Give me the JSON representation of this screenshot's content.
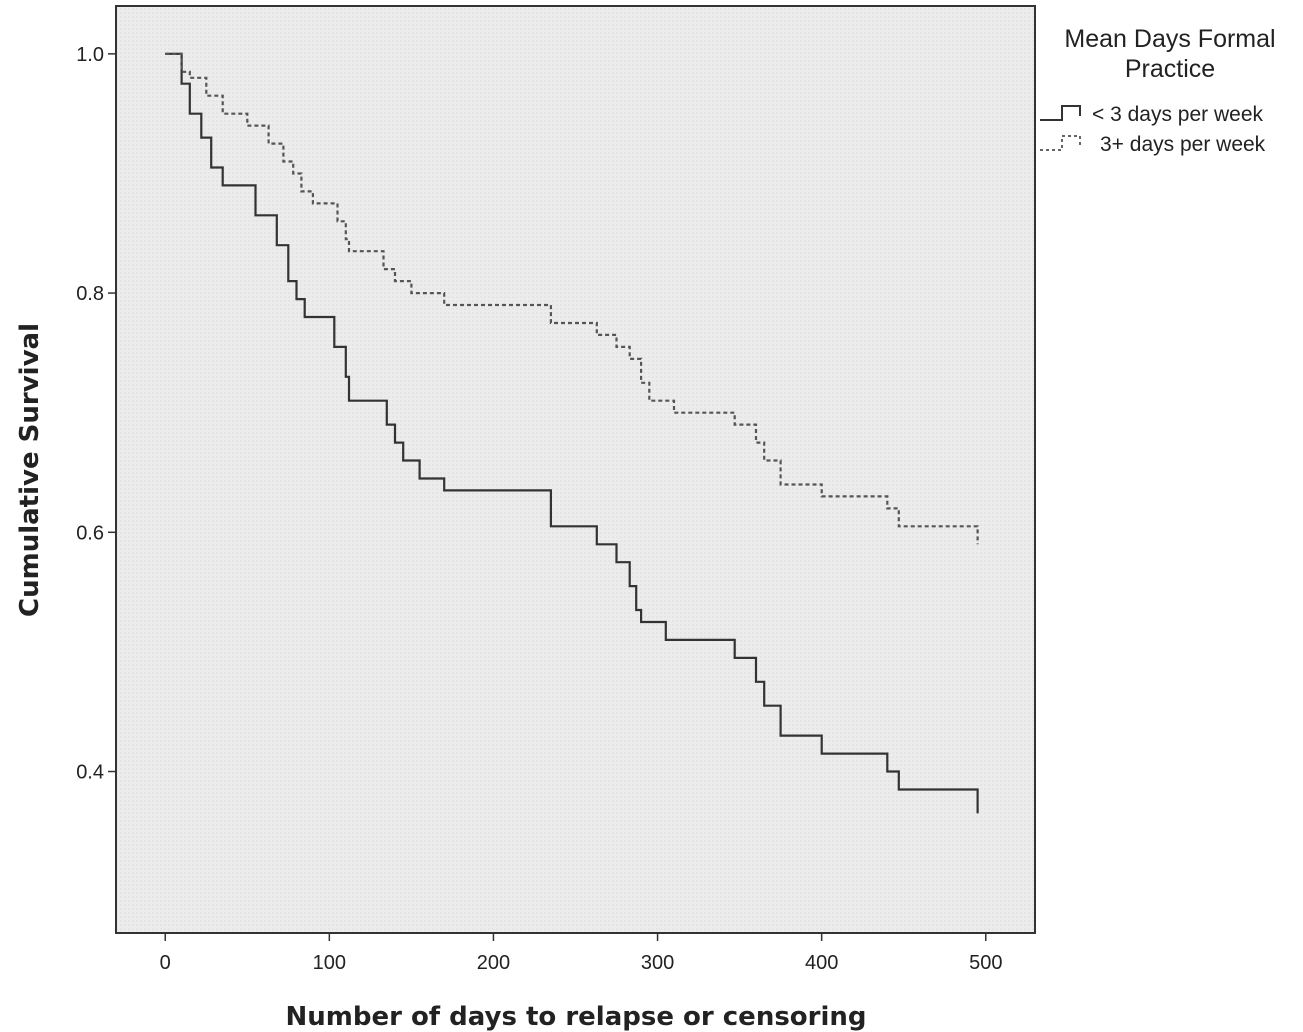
{
  "chart_data": {
    "type": "line",
    "subtype": "kaplan-meier-step",
    "title": "",
    "xlabel": "Number of days to relapse or censoring",
    "ylabel": "Cumulative Survival",
    "xlim": [
      -30,
      530
    ],
    "ylim": [
      0.265,
      1.04
    ],
    "xticks": [
      0,
      100,
      200,
      300,
      400,
      500
    ],
    "yticks": [
      0.4,
      0.6,
      0.8,
      1.0
    ],
    "xtick_labels": [
      "0",
      "100",
      "200",
      "300",
      "400",
      "500"
    ],
    "ytick_labels": [
      "0.4",
      "0.6",
      "0.8",
      "1.0"
    ],
    "grid": false,
    "plot_background": "#ebebeb",
    "legend": {
      "title_lines": [
        "Mean Days Formal",
        "Practice"
      ],
      "placement": "right-outside-top"
    },
    "series": [
      {
        "name": "< 3 days per week",
        "style": "solid",
        "color": "#333333",
        "steps": [
          [
            0,
            1.0
          ],
          [
            10,
            0.975
          ],
          [
            15,
            0.95
          ],
          [
            22,
            0.93
          ],
          [
            28,
            0.905
          ],
          [
            35,
            0.89
          ],
          [
            55,
            0.865
          ],
          [
            68,
            0.84
          ],
          [
            75,
            0.81
          ],
          [
            80,
            0.795
          ],
          [
            85,
            0.78
          ],
          [
            103,
            0.755
          ],
          [
            110,
            0.73
          ],
          [
            112,
            0.71
          ],
          [
            135,
            0.69
          ],
          [
            140,
            0.675
          ],
          [
            145,
            0.66
          ],
          [
            155,
            0.645
          ],
          [
            170,
            0.635
          ],
          [
            235,
            0.605
          ],
          [
            263,
            0.59
          ],
          [
            275,
            0.575
          ],
          [
            283,
            0.555
          ],
          [
            287,
            0.535
          ],
          [
            290,
            0.525
          ],
          [
            305,
            0.51
          ],
          [
            347,
            0.495
          ],
          [
            360,
            0.475
          ],
          [
            365,
            0.455
          ],
          [
            375,
            0.43
          ],
          [
            400,
            0.415
          ],
          [
            440,
            0.4
          ],
          [
            447,
            0.385
          ],
          [
            495,
            0.365
          ]
        ]
      },
      {
        "name": "3+ days per week",
        "style": "dashed",
        "color": "#555555",
        "steps": [
          [
            0,
            1.0
          ],
          [
            10,
            0.985
          ],
          [
            15,
            0.98
          ],
          [
            25,
            0.965
          ],
          [
            35,
            0.95
          ],
          [
            50,
            0.94
          ],
          [
            63,
            0.925
          ],
          [
            72,
            0.91
          ],
          [
            78,
            0.9
          ],
          [
            83,
            0.885
          ],
          [
            90,
            0.875
          ],
          [
            105,
            0.86
          ],
          [
            110,
            0.845
          ],
          [
            112,
            0.835
          ],
          [
            133,
            0.82
          ],
          [
            140,
            0.81
          ],
          [
            150,
            0.8
          ],
          [
            170,
            0.79
          ],
          [
            235,
            0.775
          ],
          [
            263,
            0.765
          ],
          [
            275,
            0.755
          ],
          [
            283,
            0.745
          ],
          [
            290,
            0.725
          ],
          [
            295,
            0.71
          ],
          [
            310,
            0.7
          ],
          [
            347,
            0.69
          ],
          [
            360,
            0.675
          ],
          [
            365,
            0.66
          ],
          [
            375,
            0.64
          ],
          [
            400,
            0.63
          ],
          [
            440,
            0.62
          ],
          [
            447,
            0.605
          ],
          [
            495,
            0.59
          ]
        ]
      }
    ]
  }
}
